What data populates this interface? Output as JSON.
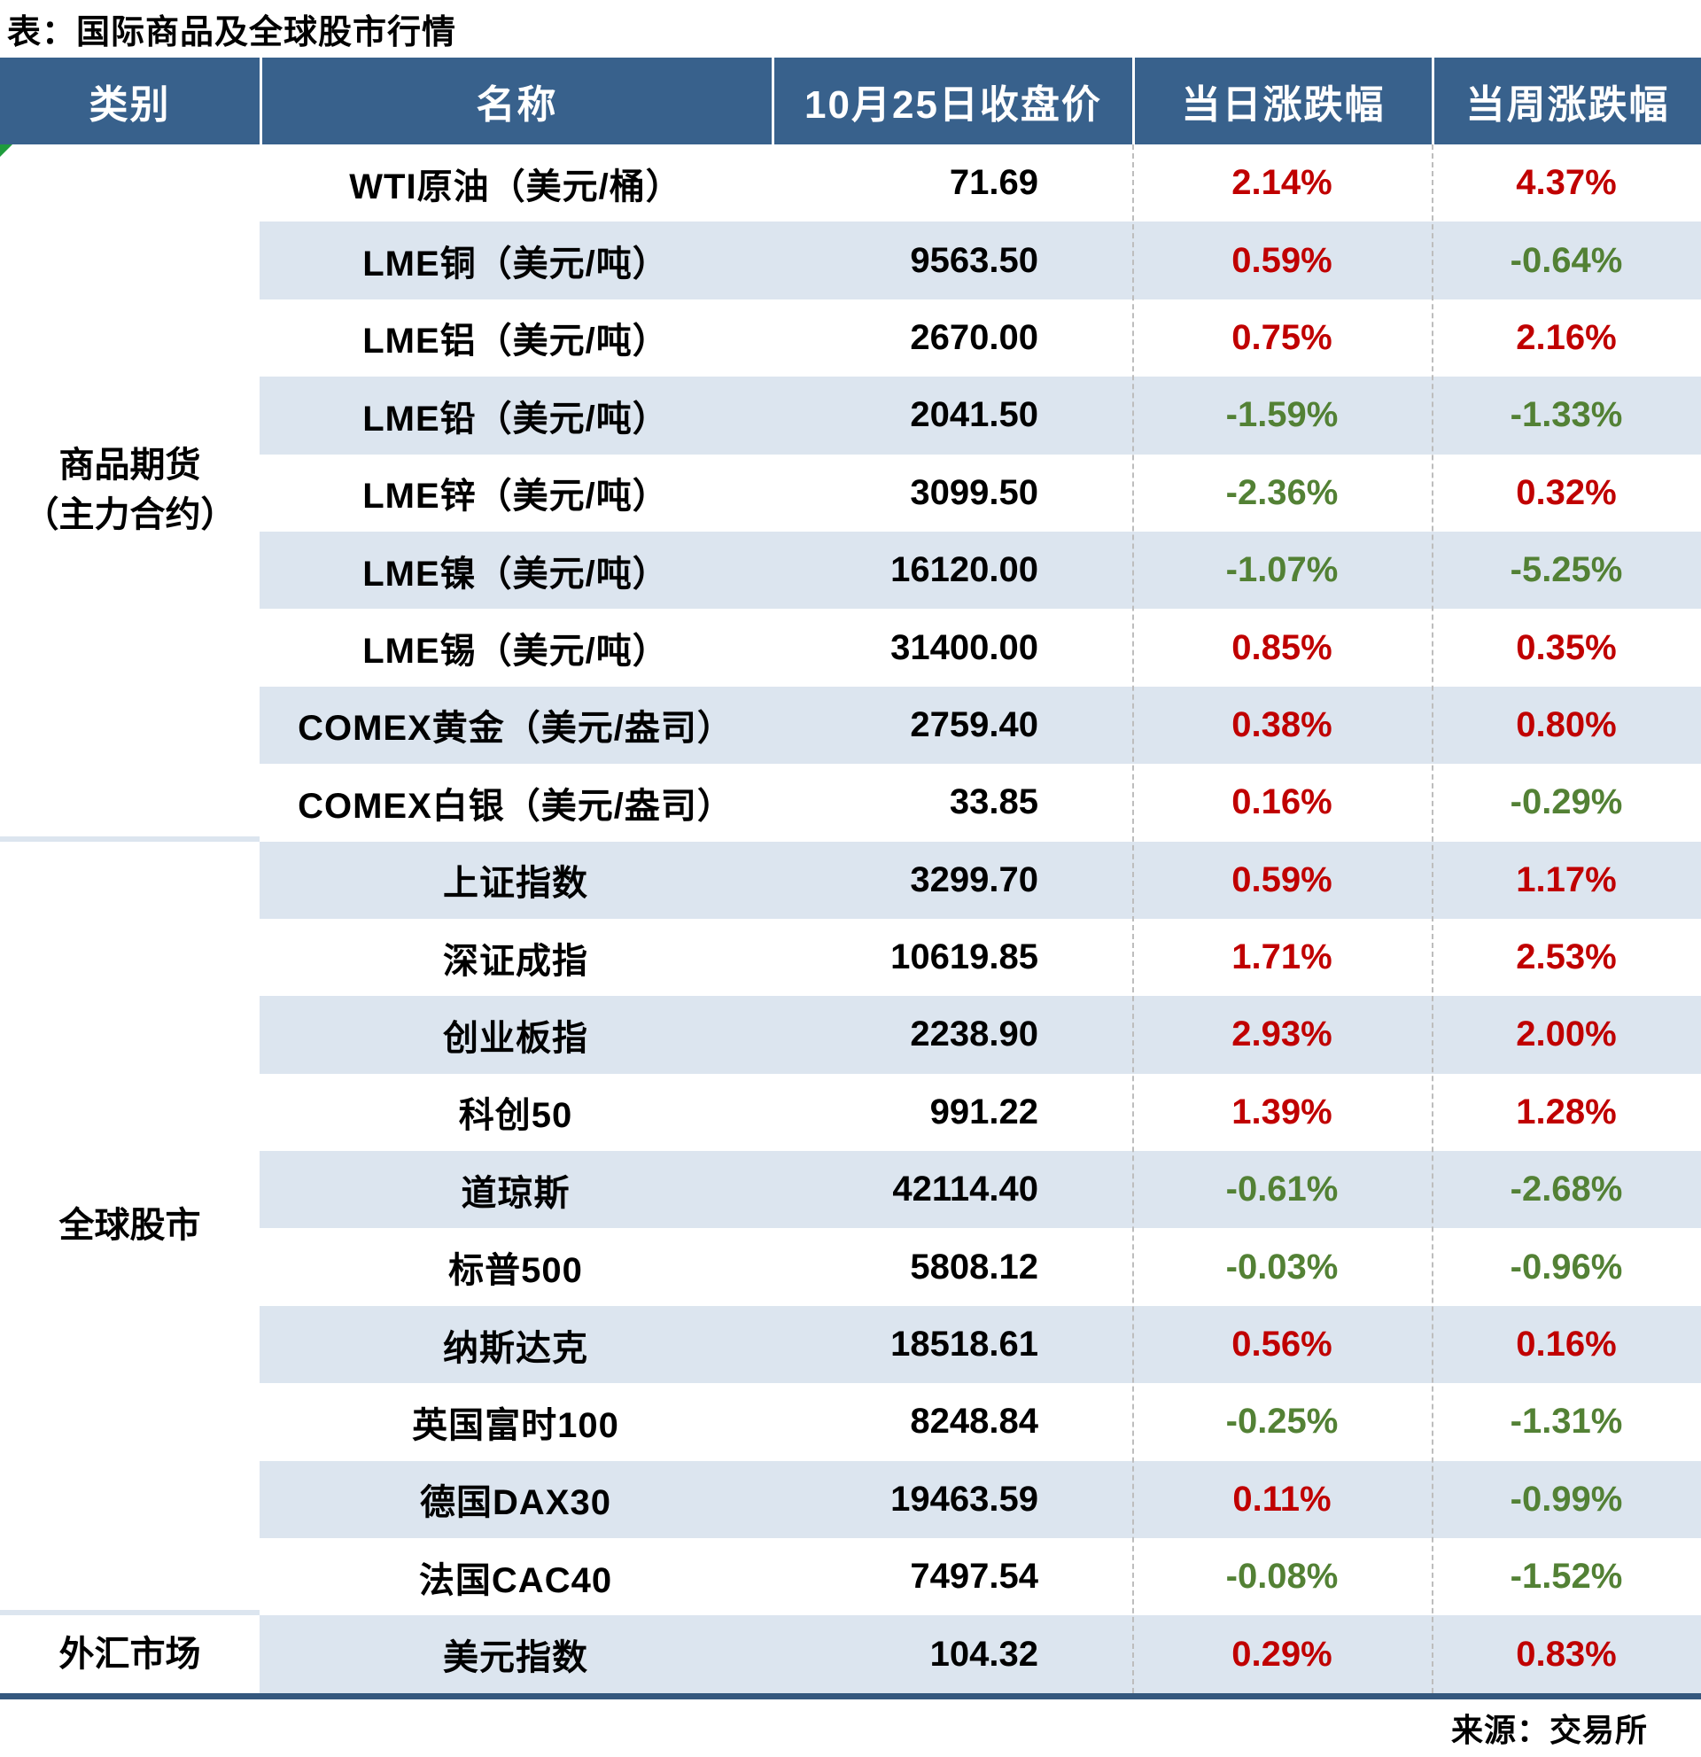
{
  "title": "表：国际商品及全球股市行情",
  "source": "来源：交易所",
  "colors": {
    "header_bg": "#38618C",
    "stripe": "#DCE5EF",
    "up_red": "#C00000",
    "down_green": "#538135",
    "bottom_rule": "#35587E",
    "corner_marker_green": "#1F9C3D"
  },
  "chart_data": {
    "type": "table",
    "columns": [
      "类别",
      "名称",
      "10月25日收盘价",
      "当日涨跌幅",
      "当周涨跌幅"
    ],
    "categories": [
      {
        "label": "商品期货（主力合约）",
        "label_lines": [
          "商品期货",
          "（主力合约）"
        ],
        "rowspan": 9
      },
      {
        "label": "全球股市",
        "label_lines": [
          "全球股市"
        ],
        "rowspan": 10
      },
      {
        "label": "外汇市场",
        "label_lines": [
          "外汇市场"
        ],
        "rowspan": 1
      }
    ],
    "rows": [
      {
        "name": "WTI原油（美元/桶）",
        "close": "71.69",
        "day": "2.14%",
        "day_dir": "up",
        "week": "4.37%",
        "week_dir": "up"
      },
      {
        "name": "LME铜（美元/吨）",
        "close": "9563.50",
        "day": "0.59%",
        "day_dir": "up",
        "week": "-0.64%",
        "week_dir": "down"
      },
      {
        "name": "LME铝（美元/吨）",
        "close": "2670.00",
        "day": "0.75%",
        "day_dir": "up",
        "week": "2.16%",
        "week_dir": "up"
      },
      {
        "name": "LME铅（美元/吨）",
        "close": "2041.50",
        "day": "-1.59%",
        "day_dir": "down",
        "week": "-1.33%",
        "week_dir": "down"
      },
      {
        "name": "LME锌（美元/吨）",
        "close": "3099.50",
        "day": "-2.36%",
        "day_dir": "down",
        "week": "0.32%",
        "week_dir": "up"
      },
      {
        "name": "LME镍（美元/吨）",
        "close": "16120.00",
        "day": "-1.07%",
        "day_dir": "down",
        "week": "-5.25%",
        "week_dir": "down"
      },
      {
        "name": "LME锡（美元/吨）",
        "close": "31400.00",
        "day": "0.85%",
        "day_dir": "up",
        "week": "0.35%",
        "week_dir": "up"
      },
      {
        "name": "COMEX黄金（美元/盎司）",
        "close": "2759.40",
        "day": "0.38%",
        "day_dir": "up",
        "week": "0.80%",
        "week_dir": "up"
      },
      {
        "name": "COMEX白银（美元/盎司）",
        "close": "33.85",
        "day": "0.16%",
        "day_dir": "up",
        "week": "-0.29%",
        "week_dir": "down"
      },
      {
        "name": "上证指数",
        "close": "3299.70",
        "day": "0.59%",
        "day_dir": "up",
        "week": "1.17%",
        "week_dir": "up"
      },
      {
        "name": "深证成指",
        "close": "10619.85",
        "day": "1.71%",
        "day_dir": "up",
        "week": "2.53%",
        "week_dir": "up"
      },
      {
        "name": "创业板指",
        "close": "2238.90",
        "day": "2.93%",
        "day_dir": "up",
        "week": "2.00%",
        "week_dir": "up"
      },
      {
        "name": "科创50",
        "close": "991.22",
        "day": "1.39%",
        "day_dir": "up",
        "week": "1.28%",
        "week_dir": "up"
      },
      {
        "name": "道琼斯",
        "close": "42114.40",
        "day": "-0.61%",
        "day_dir": "down",
        "week": "-2.68%",
        "week_dir": "down"
      },
      {
        "name": "标普500",
        "close": "5808.12",
        "day": "-0.03%",
        "day_dir": "down",
        "week": "-0.96%",
        "week_dir": "down"
      },
      {
        "name": "纳斯达克",
        "close": "18518.61",
        "day": "0.56%",
        "day_dir": "up",
        "week": "0.16%",
        "week_dir": "up"
      },
      {
        "name": "英国富时100",
        "close": "8248.84",
        "day": "-0.25%",
        "day_dir": "down",
        "week": "-1.31%",
        "week_dir": "down"
      },
      {
        "name": "德国DAX30",
        "close": "19463.59",
        "day": "0.11%",
        "day_dir": "up",
        "week": "-0.99%",
        "week_dir": "down"
      },
      {
        "name": "法国CAC40",
        "close": "7497.54",
        "day": "-0.08%",
        "day_dir": "down",
        "week": "-1.52%",
        "week_dir": "down"
      },
      {
        "name": "美元指数",
        "close": "104.32",
        "day": "0.29%",
        "day_dir": "up",
        "week": "0.83%",
        "week_dir": "up"
      }
    ]
  }
}
